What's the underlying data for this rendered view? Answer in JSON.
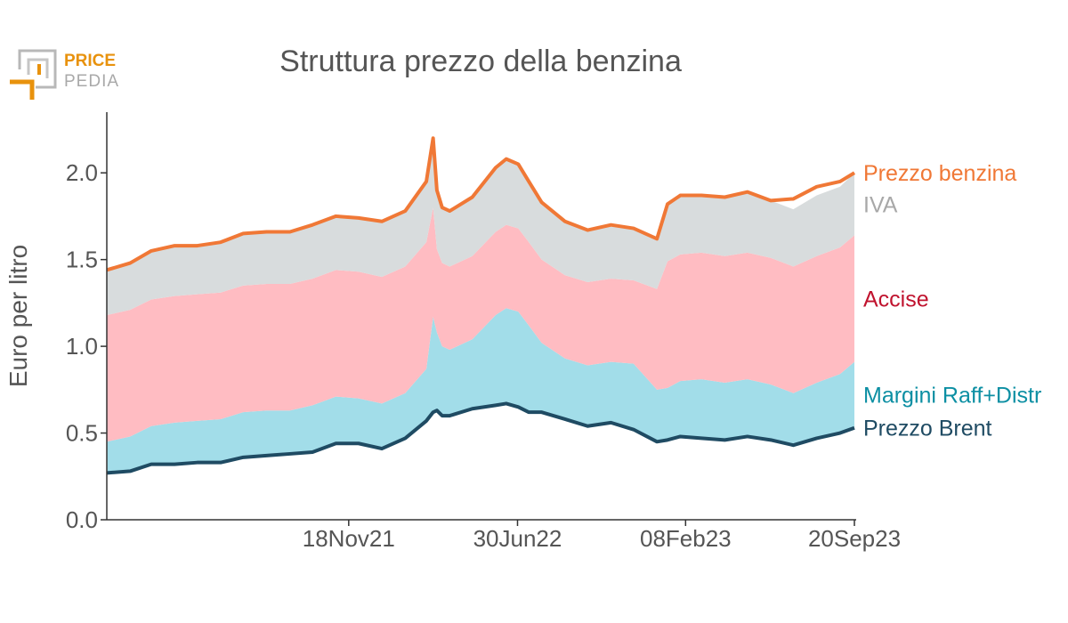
{
  "logo": {
    "word1": "PRICE",
    "word2": "PEDIA",
    "accent": "#e8920d",
    "gray": "#a9a9a9"
  },
  "chart_data": {
    "type": "area",
    "title": "Struttura prezzo della benzina",
    "xlabel": "",
    "ylabel": "Euro per litro",
    "ylim": [
      0,
      2.35
    ],
    "yticks": [
      0.0,
      0.5,
      1.0,
      1.5,
      2.0
    ],
    "ytick_labels": [
      "0.0",
      "0.5",
      "1.0",
      "1.5",
      "2.0"
    ],
    "x_range": [
      "2021-01-01",
      "2023-09-20"
    ],
    "xticks": [
      "2021-11-18",
      "2022-06-30",
      "2023-02-08",
      "2023-09-20"
    ],
    "xtick_labels": [
      "18Nov21",
      "30Jun22",
      "08Feb23",
      "20Sep23"
    ],
    "grid": false,
    "legend": "series labels at right end of chart",
    "stack_order_bottom_to_top": [
      "Prezzo Brent",
      "Margini Raff+Distr",
      "Accise",
      "IVA"
    ],
    "total_line": "Prezzo benzina",
    "x": [
      "2021-01-01",
      "2021-02-01",
      "2021-03-01",
      "2021-04-01",
      "2021-05-01",
      "2021-06-01",
      "2021-07-01",
      "2021-08-01",
      "2021-09-01",
      "2021-10-01",
      "2021-11-01",
      "2021-12-01",
      "2022-01-01",
      "2022-02-01",
      "2022-03-01",
      "2022-03-10",
      "2022-03-15",
      "2022-03-22",
      "2022-04-01",
      "2022-05-01",
      "2022-06-01",
      "2022-06-15",
      "2022-07-01",
      "2022-07-15",
      "2022-08-01",
      "2022-09-01",
      "2022-10-01",
      "2022-11-01",
      "2022-12-01",
      "2023-01-01",
      "2023-01-15",
      "2023-02-01",
      "2023-03-01",
      "2023-04-01",
      "2023-05-01",
      "2023-06-01",
      "2023-07-01",
      "2023-08-01",
      "2023-09-01",
      "2023-09-20"
    ],
    "series": [
      {
        "name": "Prezzo benzina",
        "color": "#f07836",
        "values": [
          1.44,
          1.48,
          1.55,
          1.58,
          1.58,
          1.6,
          1.65,
          1.66,
          1.66,
          1.7,
          1.75,
          1.74,
          1.72,
          1.78,
          1.95,
          2.2,
          1.9,
          1.8,
          1.78,
          1.86,
          2.03,
          2.08,
          2.05,
          1.95,
          1.83,
          1.72,
          1.67,
          1.7,
          1.68,
          1.62,
          1.82,
          1.87,
          1.87,
          1.86,
          1.89,
          1.84,
          1.85,
          1.92,
          1.95,
          2.0
        ]
      },
      {
        "name": "IVA",
        "color": "#a8a8a8",
        "fill": "#d8dcdd",
        "values": [
          0.26,
          0.27,
          0.28,
          0.29,
          0.29,
          0.29,
          0.3,
          0.3,
          0.3,
          0.31,
          0.31,
          0.31,
          0.31,
          0.32,
          0.35,
          0.4,
          0.34,
          0.32,
          0.32,
          0.34,
          0.37,
          0.38,
          0.37,
          0.35,
          0.33,
          0.31,
          0.3,
          0.31,
          0.3,
          0.29,
          0.33,
          0.34,
          0.34,
          0.34,
          0.34,
          0.33,
          0.33,
          0.35,
          0.35,
          0.36
        ]
      },
      {
        "name": "Accise",
        "color": "#c0132e",
        "fill": "#ffbcc2",
        "values": [
          0.73,
          0.73,
          0.73,
          0.73,
          0.73,
          0.73,
          0.73,
          0.73,
          0.73,
          0.73,
          0.73,
          0.73,
          0.73,
          0.73,
          0.73,
          0.63,
          0.48,
          0.48,
          0.48,
          0.48,
          0.48,
          0.48,
          0.48,
          0.48,
          0.48,
          0.48,
          0.48,
          0.48,
          0.48,
          0.58,
          0.73,
          0.73,
          0.73,
          0.73,
          0.73,
          0.73,
          0.73,
          0.73,
          0.73,
          0.73
        ]
      },
      {
        "name": "Margini Raff+Distr",
        "color": "#0c8fa3",
        "fill": "#a2dde9",
        "values": [
          0.18,
          0.2,
          0.22,
          0.24,
          0.24,
          0.25,
          0.26,
          0.26,
          0.25,
          0.27,
          0.27,
          0.26,
          0.26,
          0.26,
          0.3,
          0.55,
          0.45,
          0.4,
          0.38,
          0.4,
          0.52,
          0.55,
          0.55,
          0.5,
          0.4,
          0.35,
          0.35,
          0.35,
          0.38,
          0.3,
          0.3,
          0.32,
          0.34,
          0.33,
          0.33,
          0.32,
          0.3,
          0.32,
          0.34,
          0.38
        ]
      },
      {
        "name": "Prezzo Brent",
        "color": "#1f4b63",
        "fill": "none",
        "values": [
          0.27,
          0.28,
          0.32,
          0.32,
          0.33,
          0.33,
          0.36,
          0.37,
          0.38,
          0.39,
          0.44,
          0.44,
          0.41,
          0.47,
          0.57,
          0.62,
          0.63,
          0.6,
          0.6,
          0.64,
          0.66,
          0.67,
          0.65,
          0.62,
          0.62,
          0.58,
          0.54,
          0.56,
          0.52,
          0.45,
          0.46,
          0.48,
          0.47,
          0.46,
          0.48,
          0.46,
          0.43,
          0.47,
          0.5,
          0.53
        ]
      }
    ]
  }
}
